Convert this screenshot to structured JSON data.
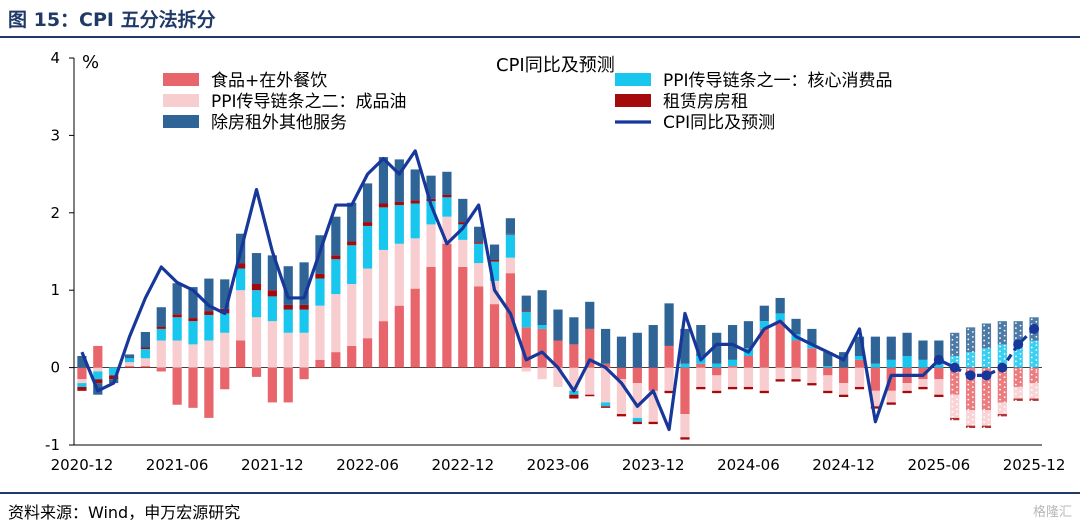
{
  "figure_title": "图 15：CPI 五分法拆分",
  "source": "资料来源：Wind，申万宏源研究",
  "watermark": "格隆汇",
  "colors": {
    "food": "#e8666b",
    "refined_oil": "#f8cdd0",
    "other_services": "#2f6496",
    "core_goods": "#19c7ee",
    "rent": "#a40a0c",
    "cpi_line": "#17379a"
  },
  "chart_data": {
    "type": "bar",
    "stacked": true,
    "title": "CPI同比及预测",
    "unit_label": "%",
    "xlabel": "",
    "ylabel": "%",
    "ylim": [
      -1,
      4
    ],
    "yticks": [
      -1,
      0,
      1,
      2,
      3,
      4
    ],
    "grid": false,
    "legend_position": "top",
    "categories": [
      "2020-12",
      "2021-01",
      "2021-02",
      "2021-03",
      "2021-04",
      "2021-05",
      "2021-06",
      "2021-07",
      "2021-08",
      "2021-09",
      "2021-10",
      "2021-11",
      "2021-12",
      "2022-01",
      "2022-02",
      "2022-03",
      "2022-04",
      "2022-05",
      "2022-06",
      "2022-07",
      "2022-08",
      "2022-09",
      "2022-10",
      "2022-11",
      "2022-12",
      "2023-01",
      "2023-02",
      "2023-03",
      "2023-04",
      "2023-05",
      "2023-06",
      "2023-07",
      "2023-08",
      "2023-09",
      "2023-10",
      "2023-11",
      "2023-12",
      "2024-01",
      "2024-02",
      "2024-03",
      "2024-04",
      "2024-05",
      "2024-06",
      "2024-07",
      "2024-08",
      "2024-09",
      "2024-10",
      "2024-11",
      "2024-12",
      "2025-01",
      "2025-02",
      "2025-03",
      "2025-04",
      "2025-05",
      "2025-06",
      "2025-07",
      "2025-08",
      "2025-09",
      "2025-10",
      "2025-11",
      "2025-12"
    ],
    "tick_labels": [
      "2020-12",
      "2021-06",
      "2021-12",
      "2022-06",
      "2022-12",
      "2023-06",
      "2023-12",
      "2024-06",
      "2024-12",
      "2025-06",
      "2025-12"
    ],
    "forecast_start": "2025-07",
    "series": [
      {
        "key": "food",
        "name": "食品+在外餐饮",
        "values": [
          -0.15,
          0.28,
          0.0,
          0.02,
          0.02,
          -0.05,
          -0.48,
          -0.52,
          -0.65,
          -0.28,
          0.35,
          -0.12,
          -0.45,
          -0.45,
          -0.15,
          0.1,
          0.2,
          0.28,
          0.38,
          0.6,
          0.8,
          1.02,
          1.3,
          1.6,
          1.3,
          1.05,
          0.82,
          1.22,
          0.52,
          0.5,
          0.35,
          0.3,
          0.5,
          0.05,
          -0.15,
          -0.2,
          -0.3,
          0.28,
          -0.6,
          0.05,
          -0.1,
          0.02,
          0.15,
          0.5,
          0.6,
          0.35,
          0.25,
          -0.1,
          -0.2,
          0.1,
          -0.3,
          -0.3,
          -0.2,
          -0.15,
          -0.15,
          -0.35,
          -0.55,
          -0.55,
          -0.45,
          -0.25,
          -0.2
        ]
      },
      {
        "key": "refined_oil",
        "name": "PPI传导链条之二：成品油",
        "values": [
          -0.05,
          -0.05,
          0.0,
          0.05,
          0.1,
          0.35,
          0.35,
          0.3,
          0.35,
          0.45,
          0.65,
          0.65,
          0.6,
          0.45,
          0.45,
          0.7,
          0.75,
          0.8,
          0.9,
          0.92,
          0.8,
          0.65,
          0.55,
          0.35,
          0.35,
          0.3,
          0.3,
          0.2,
          -0.05,
          -0.15,
          -0.25,
          -0.3,
          -0.35,
          -0.45,
          -0.45,
          -0.45,
          -0.4,
          -0.3,
          -0.3,
          -0.25,
          -0.2,
          -0.25,
          -0.25,
          -0.3,
          -0.15,
          -0.15,
          -0.2,
          -0.2,
          -0.15,
          -0.25,
          -0.2,
          -0.15,
          -0.1,
          -0.1,
          -0.2,
          -0.3,
          -0.2,
          -0.2,
          -0.15,
          -0.15,
          -0.2
        ]
      },
      {
        "key": "core_goods",
        "name": "PPI传导链条之一：核心消费品",
        "values": [
          -0.05,
          -0.1,
          -0.1,
          0.05,
          0.12,
          0.15,
          0.3,
          0.3,
          0.33,
          0.25,
          0.28,
          0.35,
          0.32,
          0.3,
          0.3,
          0.35,
          0.45,
          0.5,
          0.55,
          0.55,
          0.5,
          0.45,
          0.3,
          0.25,
          0.2,
          0.25,
          0.25,
          0.3,
          0.2,
          0.05,
          0.0,
          -0.05,
          0.0,
          -0.05,
          0.0,
          -0.05,
          0.0,
          0.0,
          0.05,
          0.1,
          0.05,
          0.08,
          0.1,
          0.1,
          0.1,
          0.08,
          0.05,
          0.02,
          0.0,
          0.05,
          0.05,
          0.1,
          0.15,
          0.1,
          0.1,
          0.15,
          0.2,
          0.25,
          0.3,
          0.3,
          0.35
        ]
      },
      {
        "key": "rent",
        "name": "租赁房房租",
        "values": [
          -0.05,
          -0.05,
          -0.05,
          0.0,
          0.02,
          0.03,
          0.04,
          0.04,
          0.05,
          0.06,
          0.07,
          0.08,
          0.08,
          0.06,
          0.06,
          0.06,
          0.05,
          0.05,
          0.05,
          0.05,
          0.04,
          0.04,
          0.03,
          0.03,
          0.03,
          0.02,
          0.02,
          0.01,
          0.01,
          0.0,
          0.0,
          -0.05,
          -0.02,
          -0.02,
          -0.03,
          -0.03,
          -0.03,
          -0.03,
          -0.03,
          -0.03,
          -0.03,
          -0.03,
          -0.03,
          -0.03,
          -0.03,
          -0.03,
          -0.03,
          -0.03,
          -0.03,
          -0.03,
          -0.03,
          -0.03,
          -0.03,
          -0.03,
          -0.03,
          -0.03,
          -0.03,
          -0.03,
          -0.03,
          -0.03,
          -0.03
        ]
      },
      {
        "key": "other_services",
        "name": "除房租外其他服务",
        "values": [
          0.15,
          -0.15,
          -0.05,
          0.05,
          0.2,
          0.25,
          0.4,
          0.4,
          0.42,
          0.38,
          0.38,
          0.4,
          0.45,
          0.5,
          0.55,
          0.5,
          0.5,
          0.5,
          0.5,
          0.6,
          0.55,
          0.4,
          0.3,
          0.3,
          0.3,
          0.2,
          0.2,
          0.2,
          0.2,
          0.45,
          0.4,
          0.35,
          0.35,
          0.45,
          0.4,
          0.45,
          0.55,
          0.55,
          0.45,
          0.4,
          0.4,
          0.45,
          0.35,
          0.2,
          0.2,
          0.2,
          0.2,
          0.18,
          0.2,
          0.25,
          0.35,
          0.3,
          0.3,
          0.25,
          0.25,
          0.3,
          0.32,
          0.32,
          0.3,
          0.3,
          0.3
        ]
      },
      {
        "key": "cpi",
        "name": "CPI同比及预测",
        "type": "line",
        "values": [
          0.2,
          -0.3,
          -0.2,
          0.4,
          0.9,
          1.3,
          1.1,
          1.0,
          0.8,
          0.7,
          1.5,
          2.3,
          1.5,
          0.9,
          0.9,
          1.5,
          2.1,
          2.1,
          2.5,
          2.7,
          2.5,
          2.8,
          2.1,
          1.6,
          1.8,
          2.1,
          1.0,
          0.7,
          0.1,
          0.2,
          0.0,
          -0.3,
          0.1,
          0.0,
          -0.2,
          -0.5,
          -0.3,
          -0.8,
          0.7,
          0.1,
          0.3,
          0.3,
          0.2,
          0.5,
          0.6,
          0.4,
          0.3,
          0.2,
          0.1,
          0.5,
          -0.7,
          -0.1,
          -0.1,
          -0.1,
          0.1,
          0.0,
          -0.1,
          -0.1,
          0.0,
          0.3,
          0.5
        ]
      }
    ]
  }
}
